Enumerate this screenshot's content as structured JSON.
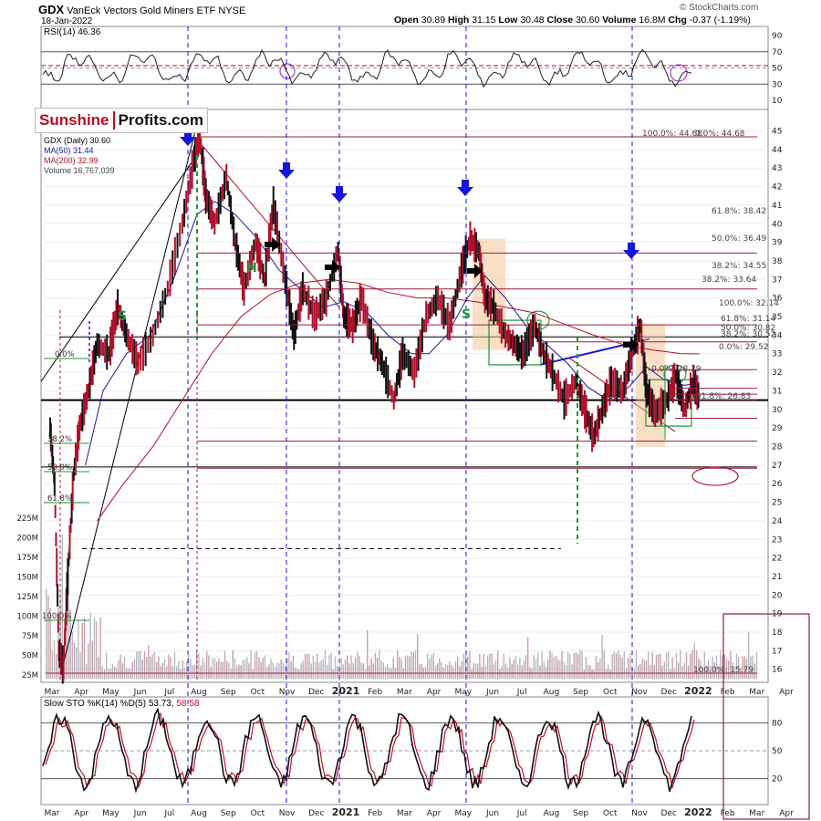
{
  "header": {
    "symbol": "GDX",
    "name": "VanEck Vectors Gold Miners ETF",
    "exchange": "NYSE",
    "date": "18-Jan-2022",
    "source": "© StockCharts.com",
    "open_label": "Open",
    "open": "30.89",
    "high_label": "High",
    "high": "31.15",
    "low_label": "Low",
    "low": "30.48",
    "close_label": "Close",
    "close": "30.60",
    "volume_label": "Volume",
    "volume": "16.8M",
    "chg_label": "Chg",
    "chg": "-0.37 (-1.19%)"
  },
  "logo": {
    "part1": "Sunshine",
    "part2": "Profits.com"
  },
  "legend": {
    "main": "GDX (Daily) 30.60",
    "ma50": "MA(50) 31.44",
    "ma200": "MA(200) 32.99",
    "volume": "Volume 16,767,039"
  },
  "rsi_label": "RSI(14) 46.36",
  "sto_label_a": "Slow STO %K(14) %D(5) ",
  "sto_k": "53.73",
  "sto_d": "58.58",
  "colors": {
    "ma50": "#1a1aa0",
    "ma200": "#b0102a",
    "arrow": "#1515e0",
    "hs": "#1a9a3a",
    "fib": "#9b1b3a"
  },
  "chart_data": {
    "type": "line",
    "x_ticks": [
      "Mar",
      "Apr",
      "May",
      "Jun",
      "Jul",
      "Aug",
      "Sep",
      "Oct",
      "Nov",
      "Dec",
      "2021",
      "Feb",
      "Mar",
      "Apr",
      "May",
      "Jun",
      "Jul",
      "Aug",
      "Sep",
      "Oct",
      "Nov",
      "Dec",
      "2022",
      "Feb",
      "Mar",
      "Apr"
    ],
    "price_ticks": [
      16,
      17,
      18,
      19,
      20,
      21,
      22,
      23,
      24,
      25,
      26,
      27,
      28,
      29,
      30,
      31,
      32,
      33,
      34,
      35,
      36,
      37,
      38,
      39,
      40,
      41,
      42,
      43,
      44,
      45
    ],
    "volume_ticks": [
      "25M",
      "50M",
      "75M",
      "100M",
      "125M",
      "150M",
      "175M",
      "200M",
      "225M"
    ],
    "rsi_ticks": [
      10,
      30,
      50,
      70,
      90
    ],
    "sto_ticks": [
      20,
      50,
      80
    ],
    "price_range": [
      15.5,
      45.5
    ],
    "rsi_range": [
      0,
      100
    ],
    "sto_range": [
      0,
      100
    ],
    "price_series": [
      {
        "x": 0.0,
        "y": 29.0
      },
      {
        "x": 0.15,
        "y": 26.0
      },
      {
        "x": 0.3,
        "y": 17.0
      },
      {
        "x": 0.45,
        "y": 16.1
      },
      {
        "x": 0.6,
        "y": 21.0
      },
      {
        "x": 0.8,
        "y": 26.5
      },
      {
        "x": 1.0,
        "y": 29.0
      },
      {
        "x": 1.3,
        "y": 31.0
      },
      {
        "x": 1.6,
        "y": 33.5
      },
      {
        "x": 2.0,
        "y": 33.0
      },
      {
        "x": 2.3,
        "y": 35.5
      },
      {
        "x": 2.6,
        "y": 34.0
      },
      {
        "x": 3.0,
        "y": 32.5
      },
      {
        "x": 3.5,
        "y": 34.0
      },
      {
        "x": 4.0,
        "y": 36.5
      },
      {
        "x": 4.5,
        "y": 40.0
      },
      {
        "x": 4.9,
        "y": 43.5
      },
      {
        "x": 5.1,
        "y": 44.7
      },
      {
        "x": 5.3,
        "y": 41.5
      },
      {
        "x": 5.6,
        "y": 40.0
      },
      {
        "x": 6.0,
        "y": 42.5
      },
      {
        "x": 6.3,
        "y": 39.0
      },
      {
        "x": 6.6,
        "y": 36.5
      },
      {
        "x": 7.0,
        "y": 39.0
      },
      {
        "x": 7.3,
        "y": 37.0
      },
      {
        "x": 7.6,
        "y": 41.0
      },
      {
        "x": 8.0,
        "y": 37.0
      },
      {
        "x": 8.3,
        "y": 34.0
      },
      {
        "x": 8.6,
        "y": 36.5
      },
      {
        "x": 9.0,
        "y": 35.0
      },
      {
        "x": 9.4,
        "y": 36.0
      },
      {
        "x": 9.8,
        "y": 38.5
      },
      {
        "x": 10.0,
        "y": 35.0
      },
      {
        "x": 10.3,
        "y": 34.5
      },
      {
        "x": 10.6,
        "y": 36.0
      },
      {
        "x": 11.0,
        "y": 33.5
      },
      {
        "x": 11.3,
        "y": 32.5
      },
      {
        "x": 11.7,
        "y": 30.5
      },
      {
        "x": 12.0,
        "y": 33.0
      },
      {
        "x": 12.4,
        "y": 32.0
      },
      {
        "x": 12.8,
        "y": 35.0
      },
      {
        "x": 13.2,
        "y": 36.0
      },
      {
        "x": 13.6,
        "y": 34.5
      },
      {
        "x": 14.0,
        "y": 37.5
      },
      {
        "x": 14.3,
        "y": 39.2
      },
      {
        "x": 14.6,
        "y": 38.5
      },
      {
        "x": 14.8,
        "y": 36.0
      },
      {
        "x": 15.1,
        "y": 35.5
      },
      {
        "x": 15.5,
        "y": 34.0
      },
      {
        "x": 15.8,
        "y": 33.5
      },
      {
        "x": 16.1,
        "y": 33.0
      },
      {
        "x": 16.5,
        "y": 34.5
      },
      {
        "x": 16.8,
        "y": 33.0
      },
      {
        "x": 17.1,
        "y": 32.0
      },
      {
        "x": 17.5,
        "y": 30.5
      },
      {
        "x": 17.9,
        "y": 31.5
      },
      {
        "x": 18.2,
        "y": 30.0
      },
      {
        "x": 18.5,
        "y": 28.5
      },
      {
        "x": 18.8,
        "y": 30.0
      },
      {
        "x": 19.1,
        "y": 31.5
      },
      {
        "x": 19.5,
        "y": 31.0
      },
      {
        "x": 19.8,
        "y": 33.0
      },
      {
        "x": 20.1,
        "y": 34.5
      },
      {
        "x": 20.3,
        "y": 31.0
      },
      {
        "x": 20.6,
        "y": 29.8
      },
      {
        "x": 21.0,
        "y": 30.5
      },
      {
        "x": 21.3,
        "y": 31.8
      },
      {
        "x": 21.6,
        "y": 30.0
      },
      {
        "x": 21.9,
        "y": 31.5
      },
      {
        "x": 22.1,
        "y": 30.6
      }
    ],
    "ma50_series": [
      {
        "x": 1.2,
        "y": 27.0
      },
      {
        "x": 1.8,
        "y": 31.0
      },
      {
        "x": 2.6,
        "y": 33.0
      },
      {
        "x": 3.4,
        "y": 34.0
      },
      {
        "x": 4.2,
        "y": 37.0
      },
      {
        "x": 5.0,
        "y": 40.5
      },
      {
        "x": 5.6,
        "y": 41.2
      },
      {
        "x": 6.3,
        "y": 40.5
      },
      {
        "x": 7.0,
        "y": 39.3
      },
      {
        "x": 7.8,
        "y": 37.5
      },
      {
        "x": 8.5,
        "y": 36.5
      },
      {
        "x": 9.3,
        "y": 35.5
      },
      {
        "x": 10.0,
        "y": 35.8
      },
      {
        "x": 10.8,
        "y": 35.2
      },
      {
        "x": 11.5,
        "y": 34.0
      },
      {
        "x": 12.3,
        "y": 33.0
      },
      {
        "x": 12.9,
        "y": 33.0
      },
      {
        "x": 13.5,
        "y": 34.0
      },
      {
        "x": 14.2,
        "y": 36.0
      },
      {
        "x": 14.8,
        "y": 37.2
      },
      {
        "x": 15.5,
        "y": 36.0
      },
      {
        "x": 16.2,
        "y": 34.5
      },
      {
        "x": 16.9,
        "y": 33.5
      },
      {
        "x": 17.6,
        "y": 32.5
      },
      {
        "x": 18.3,
        "y": 31.2
      },
      {
        "x": 19.0,
        "y": 30.5
      },
      {
        "x": 19.7,
        "y": 31.2
      },
      {
        "x": 20.3,
        "y": 32.3
      },
      {
        "x": 20.9,
        "y": 31.6
      },
      {
        "x": 21.6,
        "y": 31.3
      },
      {
        "x": 22.1,
        "y": 31.44
      }
    ],
    "ma200_series": [
      {
        "x": 1.6,
        "y": 24.0
      },
      {
        "x": 2.5,
        "y": 26.0
      },
      {
        "x": 3.5,
        "y": 28.0
      },
      {
        "x": 4.5,
        "y": 30.5
      },
      {
        "x": 5.5,
        "y": 33.0
      },
      {
        "x": 6.5,
        "y": 35.0
      },
      {
        "x": 7.5,
        "y": 36.2
      },
      {
        "x": 8.5,
        "y": 36.8
      },
      {
        "x": 9.5,
        "y": 37.0
      },
      {
        "x": 10.5,
        "y": 36.8
      },
      {
        "x": 11.5,
        "y": 36.3
      },
      {
        "x": 12.5,
        "y": 36.0
      },
      {
        "x": 13.5,
        "y": 36.0
      },
      {
        "x": 14.5,
        "y": 35.8
      },
      {
        "x": 15.5,
        "y": 35.5
      },
      {
        "x": 16.5,
        "y": 35.2
      },
      {
        "x": 17.5,
        "y": 34.6
      },
      {
        "x": 18.5,
        "y": 34.0
      },
      {
        "x": 19.5,
        "y": 33.5
      },
      {
        "x": 20.5,
        "y": 33.2
      },
      {
        "x": 21.5,
        "y": 33.0
      },
      {
        "x": 22.1,
        "y": 32.99
      }
    ],
    "fib_levels": [
      {
        "label": "100.0%: 44.68",
        "y": 44.68
      },
      {
        "label": "0.0%: 44.68",
        "y": 44.68
      },
      {
        "label": "61.8%: 38.42",
        "y": 38.42
      },
      {
        "label": "50.0%: 36.49",
        "y": 36.49
      },
      {
        "label": "38.2%: 34.55",
        "y": 34.55
      },
      {
        "label": "38.2%: 33.64",
        "y": 33.64
      },
      {
        "label": "100.0%: 32.14",
        "y": 32.14
      },
      {
        "label": "61.8%: 31.14",
        "y": 31.14
      },
      {
        "label": "50.0%: 30.82",
        "y": 30.82
      },
      {
        "label": "38.2%: 30.52",
        "y": 30.52
      },
      {
        "label": "0.0%: 29.52",
        "y": 29.52
      },
      {
        "label": "0.0%: 28.29",
        "y": 28.29
      },
      {
        "label": "61.8%: 26.83",
        "y": 26.83
      },
      {
        "label": "100.0%: 15.79",
        "y": 15.79
      }
    ],
    "left_fib_labels": [
      "0.0%",
      "38.2%",
      "50.0%",
      "61.8%",
      "100.0%"
    ],
    "pattern_labels": [
      "S",
      "H",
      "S"
    ],
    "annotations": "blue down arrows mark tops; green dashed verticals; black right arrows; orange shaded zones; green rectangles; purple RSI circles; red ellipse at 61.8% 26.83"
  }
}
